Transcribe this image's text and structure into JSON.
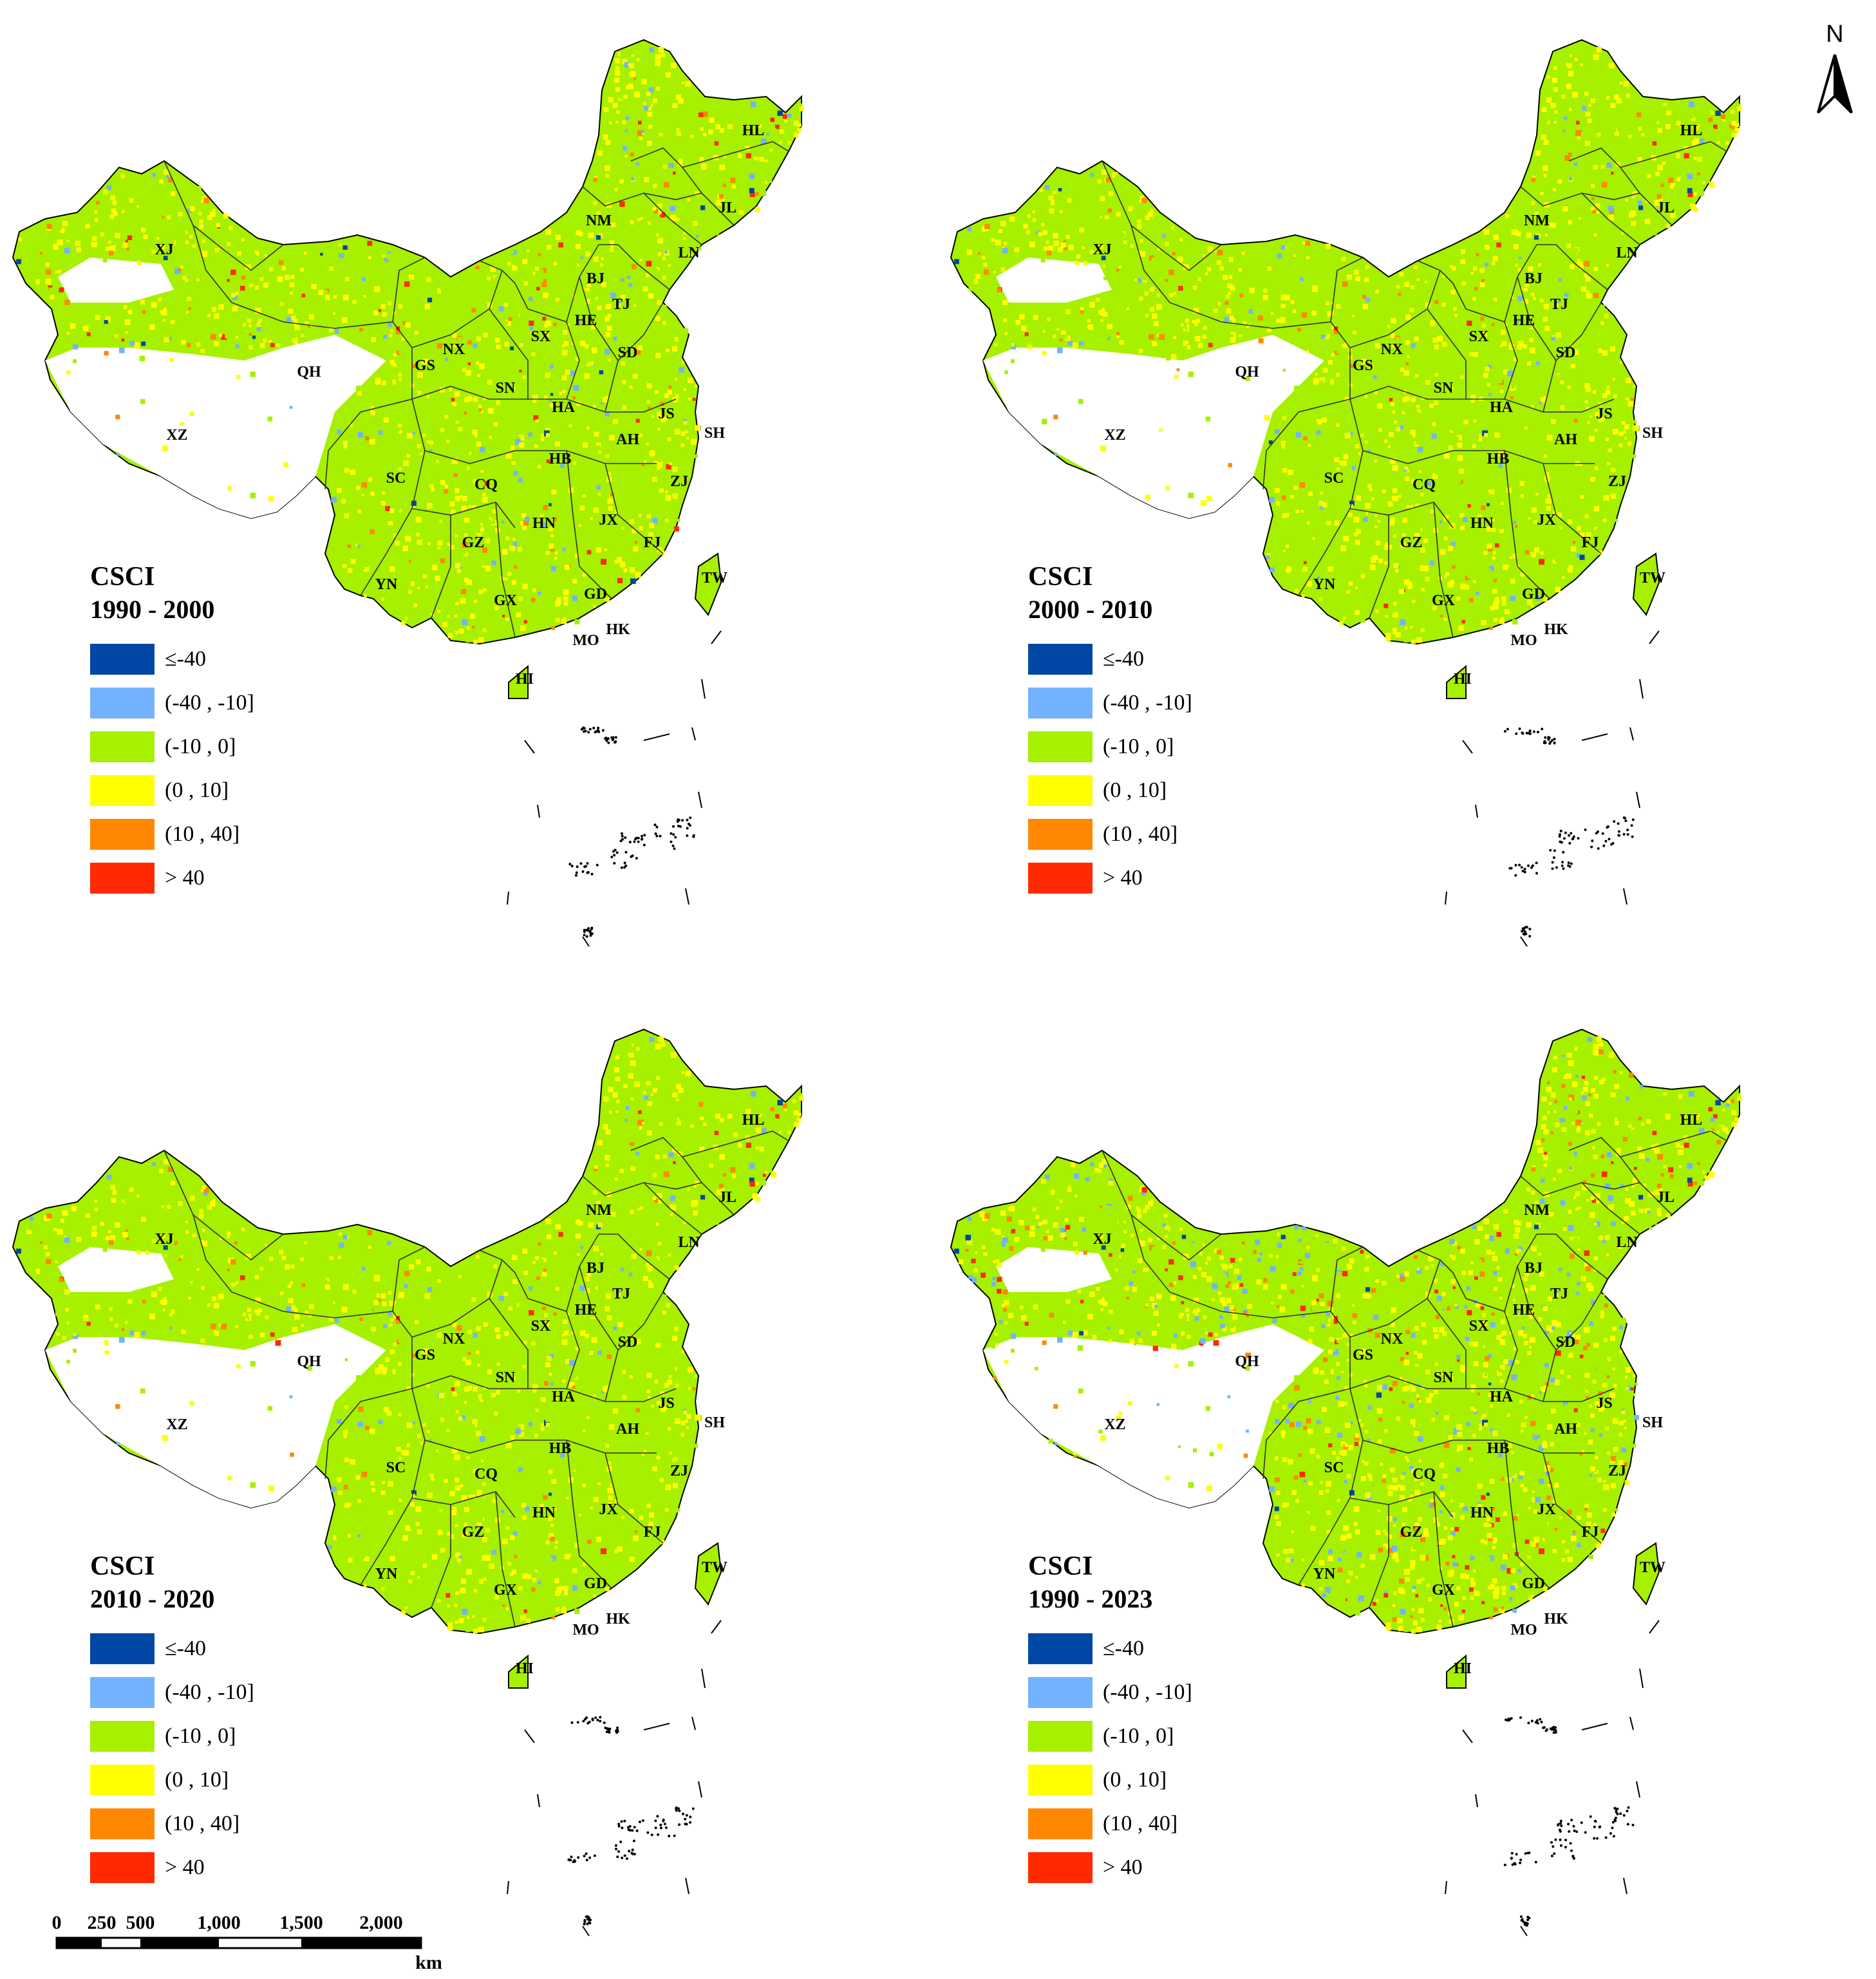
{
  "compass": {
    "label": "N"
  },
  "scale_bar": {
    "ticks": [
      "0",
      "250",
      "500",
      "1,000",
      "1,500",
      "2,000"
    ],
    "unit": "km"
  },
  "colors": {
    "c1": "#0047A6",
    "c2": "#73B2FF",
    "c3": "#A6F000",
    "c4": "#FFFF00",
    "c5": "#FF8800",
    "c6": "#FF2A00"
  },
  "legend_title": "CSCI",
  "legend_classes": [
    {
      "label": "≤-40",
      "color_key": "c1"
    },
    {
      "label": "(-40 , -10]",
      "color_key": "c2"
    },
    {
      "label": "(-10 , 0]",
      "color_key": "c3"
    },
    {
      "label": "(0 , 10]",
      "color_key": "c4"
    },
    {
      "label": "(10 , 40]",
      "color_key": "c5"
    },
    {
      "label": "> 40",
      "color_key": "c6"
    }
  ],
  "panels": [
    {
      "period": "1990 - 2000"
    },
    {
      "period": "2000 - 2010"
    },
    {
      "period": "2010 - 2020"
    },
    {
      "period": "1990 - 2023"
    }
  ],
  "provinces": [
    "HL",
    "JL",
    "LN",
    "NM",
    "XJ",
    "BJ",
    "TJ",
    "HE",
    "SX",
    "SD",
    "QH",
    "GS",
    "NX",
    "SN",
    "HA",
    "JS",
    "SH",
    "XZ",
    "AH",
    "HB",
    "SC",
    "CQ",
    "ZJ",
    "HN",
    "JX",
    "GZ",
    "FJ",
    "TW",
    "YN",
    "GX",
    "GD",
    "HK",
    "MO",
    "HI"
  ]
}
